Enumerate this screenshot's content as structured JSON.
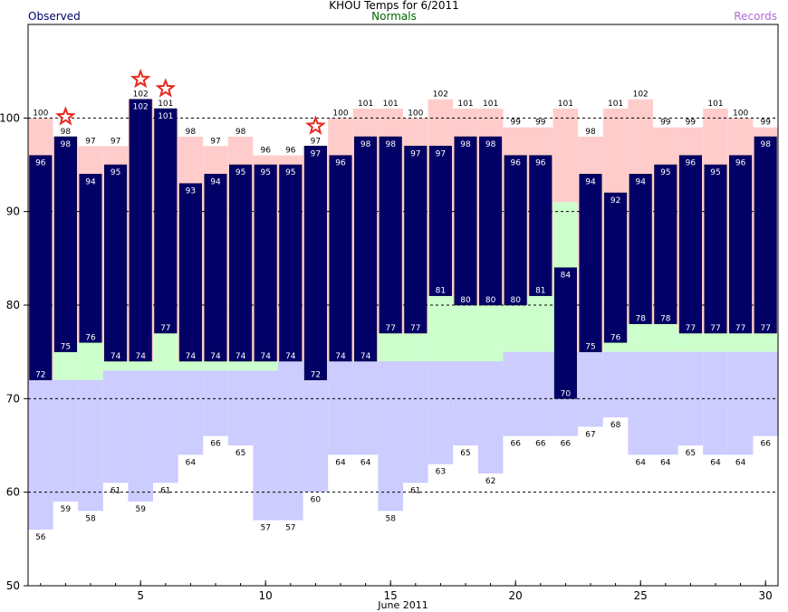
{
  "header": {
    "title": "KHOU Temps for 6/2011",
    "observed_label": "Observed",
    "normals_label": "Normals",
    "records_label": "Records"
  },
  "colors": {
    "observed": "#000066",
    "normal_band": "#ccffcc",
    "record_high_band": "#ffcccc",
    "record_low_band": "#ccccff",
    "record_star": "#e8281e",
    "normals_text": "#006600",
    "records_text": "#b06ad6"
  },
  "chart_data": {
    "type": "bar",
    "title": "KHOU Temps for 6/2011",
    "xlabel": "June 2011",
    "ylabel": "",
    "ylim": [
      50,
      110
    ],
    "xlim": [
      0.5,
      30.5
    ],
    "yticks": [
      50,
      60,
      70,
      80,
      90,
      100
    ],
    "xticks": [
      5,
      10,
      15,
      20,
      25,
      30
    ],
    "gridlines_dashed": [
      60,
      70,
      80,
      90,
      100
    ],
    "days": [
      1,
      2,
      3,
      4,
      5,
      6,
      7,
      8,
      9,
      10,
      11,
      12,
      13,
      14,
      15,
      16,
      17,
      18,
      19,
      20,
      21,
      22,
      23,
      24,
      25,
      26,
      27,
      28,
      29,
      30
    ],
    "series": [
      {
        "name": "Observed High",
        "values": [
          96,
          98,
          94,
          95,
          102,
          101,
          93,
          94,
          95,
          95,
          95,
          97,
          96,
          98,
          98,
          97,
          97,
          98,
          98,
          96,
          96,
          84,
          94,
          92,
          94,
          95,
          96,
          95,
          96,
          98
        ]
      },
      {
        "name": "Observed Low",
        "values": [
          72,
          75,
          76,
          74,
          74,
          77,
          74,
          74,
          74,
          74,
          74,
          72,
          74,
          74,
          77,
          77,
          81,
          80,
          80,
          80,
          81,
          70,
          75,
          76,
          78,
          78,
          77,
          77,
          77,
          77
        ]
      },
      {
        "name": "Record High",
        "values": [
          100,
          98,
          97,
          97,
          102,
          101,
          98,
          97,
          98,
          96,
          96,
          97,
          100,
          101,
          101,
          100,
          102,
          101,
          101,
          99,
          99,
          101,
          98,
          101,
          102,
          99,
          99,
          101,
          100,
          99
        ]
      },
      {
        "name": "Record Low",
        "values": [
          56,
          59,
          58,
          61,
          59,
          61,
          64,
          66,
          65,
          57,
          57,
          60,
          64,
          64,
          58,
          61,
          63,
          65,
          62,
          66,
          66,
          66,
          67,
          68,
          64,
          64,
          65,
          64,
          64,
          66
        ]
      },
      {
        "name": "Normal High",
        "values": [
          72,
          75,
          76,
          74,
          74,
          77,
          74,
          74,
          74,
          74,
          74,
          72,
          74,
          74,
          77,
          77,
          81,
          80,
          80,
          80,
          81,
          91,
          75,
          76,
          78,
          78,
          77,
          77,
          77,
          77
        ]
      },
      {
        "name": "Normal Low",
        "values": [
          72,
          72,
          72,
          73,
          73,
          73,
          73,
          73,
          73,
          73,
          74,
          74,
          74,
          74,
          74,
          74,
          74,
          74,
          74,
          75,
          75,
          75,
          75,
          75,
          75,
          75,
          75,
          75,
          75,
          75
        ]
      }
    ],
    "record_set_days": [
      2,
      5,
      6,
      12
    ]
  }
}
